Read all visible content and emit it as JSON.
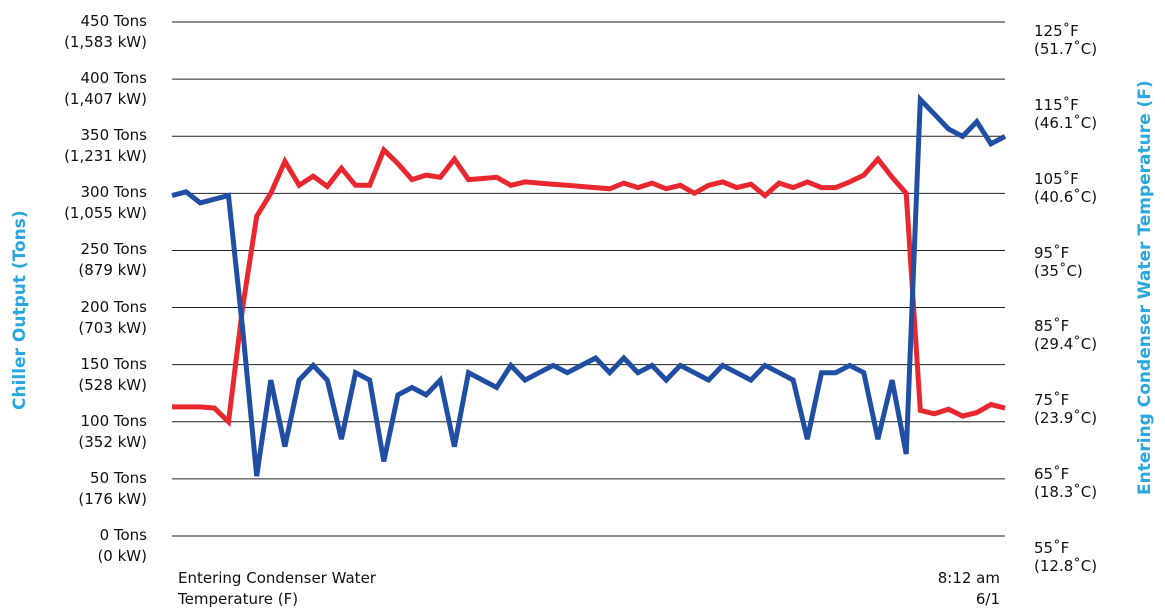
{
  "chart_data": {
    "type": "line",
    "y_title": "Chiller Output (Tons)",
    "y2_title": "Entering Condenser Water Temperature (F)",
    "annotations": [
      "Entering Condenser Water\nTemperature (F)",
      "8:12 am\n6/1"
    ],
    "ylim": [
      0,
      450
    ],
    "yticks": [
      {
        "value": 450,
        "label": "450 Tons\n(1,583 kW)"
      },
      {
        "value": 400,
        "label": "400 Tons\n(1,407 kW)"
      },
      {
        "value": 350,
        "label": "350 Tons\n(1,231 kW)"
      },
      {
        "value": 300,
        "label": "300 Tons\n(1,055 kW)"
      },
      {
        "value": 250,
        "label": "250 Tons\n(879 kW)"
      },
      {
        "value": 200,
        "label": "200 Tons\n(703 kW)"
      },
      {
        "value": 150,
        "label": "150 Tons\n(528 kW)"
      },
      {
        "value": 100,
        "label": "100 Tons\n(352 kW)"
      },
      {
        "value": 50,
        "label": "50 Tons\n(176 kW)"
      },
      {
        "value": 0,
        "label": "0 Tons\n(0 kW)"
      }
    ],
    "y2lim": [
      55,
      125
    ],
    "y2ticks": [
      {
        "value": 125,
        "label": "125˚F\n(51.7˚C)"
      },
      {
        "value": 115,
        "label": "115˚F\n(46.1˚C)"
      },
      {
        "value": 105,
        "label": "105˚F\n(40.6˚C)"
      },
      {
        "value": 95,
        "label": "95˚F\n(35˚C)"
      },
      {
        "value": 85,
        "label": "85˚F\n(29.4˚C)"
      },
      {
        "value": 75,
        "label": "75˚F\n(23.9˚C)"
      },
      {
        "value": 65,
        "label": "65˚F\n(18.3˚C)"
      },
      {
        "value": 55,
        "label": "55˚F\n(12.8˚C)"
      }
    ],
    "grid": true,
    "series": [
      {
        "color": "#e8272f",
        "values": [
          113,
          113,
          113,
          112,
          100,
          200,
          280,
          300,
          328,
          307,
          315,
          306,
          322,
          307,
          307,
          338,
          326,
          312,
          316,
          314,
          330,
          312,
          313,
          314,
          307,
          310,
          309,
          308,
          307,
          306,
          305,
          304,
          309,
          305,
          309,
          304,
          307,
          300,
          307,
          310,
          305,
          308,
          298,
          309,
          305,
          310,
          305,
          305,
          310,
          316,
          330,
          314,
          300,
          110,
          107,
          111,
          105,
          108,
          115,
          112
        ]
      },
      {
        "color": "#1f4ea3",
        "axis": "y2",
        "values": [
          103,
          103.5,
          102,
          102.5,
          103,
          85,
          65,
          78,
          69,
          78,
          80,
          78,
          70,
          79,
          78,
          67,
          76,
          77,
          76,
          78,
          69,
          79,
          78,
          77,
          80,
          78,
          79,
          80,
          79,
          80,
          81,
          79,
          81,
          79,
          80,
          78,
          80,
          79,
          78,
          80,
          79,
          78,
          80,
          79,
          78,
          70,
          79,
          79,
          80,
          79,
          70,
          78,
          68,
          116,
          114,
          112,
          111,
          113,
          110,
          111
        ]
      }
    ]
  }
}
